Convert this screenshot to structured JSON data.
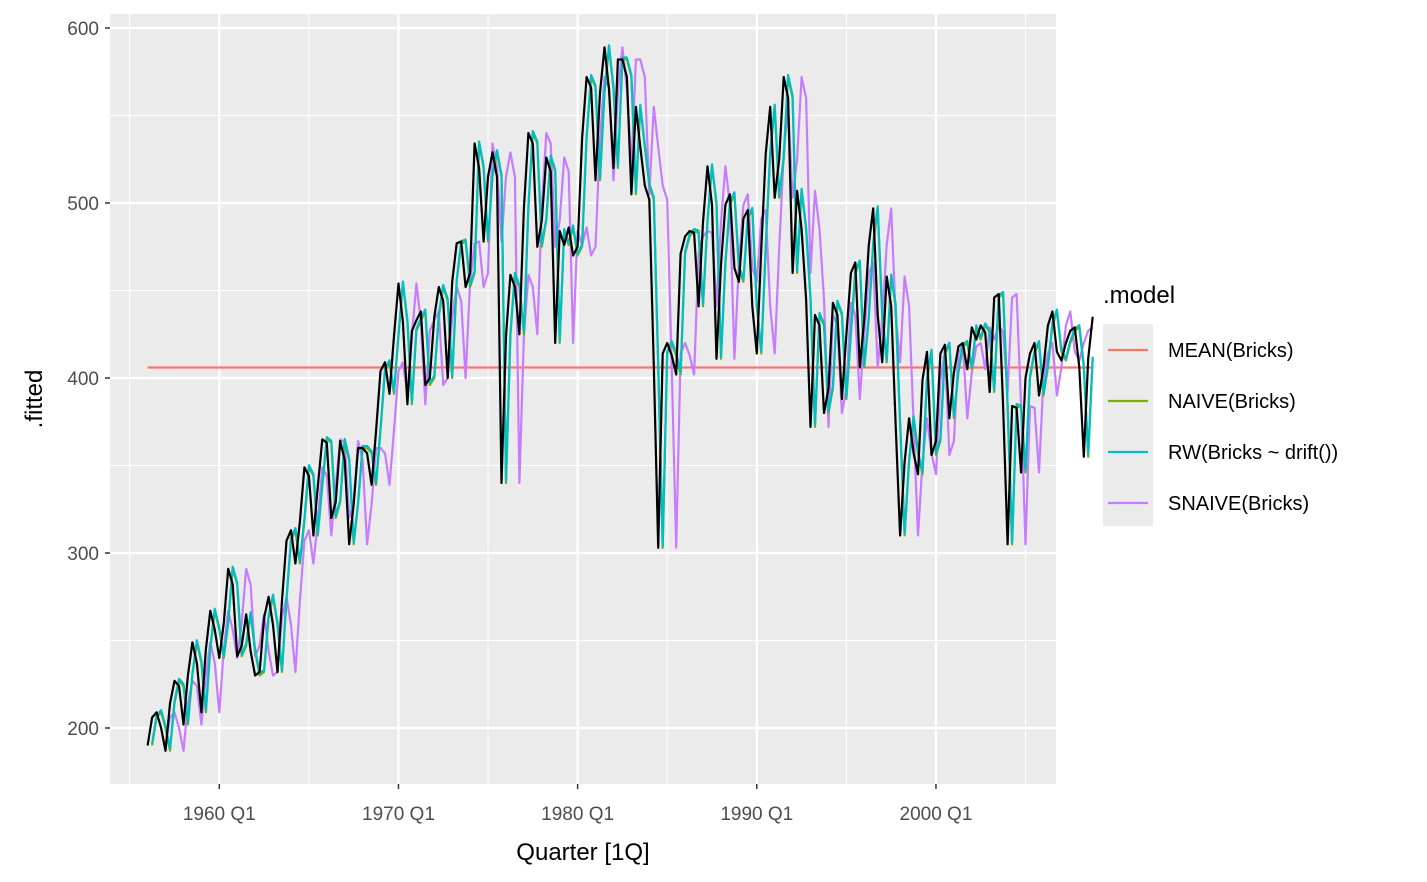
{
  "chart_data": {
    "type": "line",
    "xlabel": "Quarter [1Q]",
    "ylabel": ".fitted",
    "xlim": [
      1953.9,
      2006.7
    ],
    "ylim": [
      168,
      608
    ],
    "x_ticks": [
      {
        "value": 1960,
        "label": "1960 Q1"
      },
      {
        "value": 1970,
        "label": "1970 Q1"
      },
      {
        "value": 1980,
        "label": "1980 Q1"
      },
      {
        "value": 1990,
        "label": "1990 Q1"
      },
      {
        "value": 2000,
        "label": "2000 Q1"
      }
    ],
    "y_ticks": [
      200,
      300,
      400,
      500,
      600
    ],
    "grid": true,
    "legend": {
      "title": ".model",
      "position": "right",
      "entries": [
        {
          "label": "MEAN(Bricks)",
          "color": "#F8766D"
        },
        {
          "label": "NAIVE(Bricks)",
          "color": "#7CAE00"
        },
        {
          "label": "RW(Bricks ~ drift())",
          "color": "#00BFC4"
        },
        {
          "label": "SNAIVE(Bricks)",
          "color": "#C77CFF"
        }
      ]
    },
    "mean_value": 406,
    "observed": {
      "name": "Bricks",
      "color": "#000000",
      "start": 1956.0,
      "step": 0.25,
      "values": [
        190,
        206,
        209,
        200,
        187,
        214,
        227,
        224,
        202,
        230,
        249,
        237,
        209,
        245,
        267,
        256,
        240,
        260,
        291,
        282,
        241,
        247,
        265,
        244,
        230,
        232,
        263,
        275,
        259,
        232,
        273,
        307,
        313,
        294,
        318,
        349,
        344,
        310,
        338,
        365,
        363,
        320,
        329,
        364,
        353,
        305,
        328,
        360,
        360,
        357,
        339,
        370,
        404,
        409,
        391,
        424,
        454,
        432,
        385,
        427,
        433,
        438,
        396,
        400,
        435,
        452,
        444,
        400,
        455,
        477,
        478,
        452,
        460,
        534,
        520,
        478,
        515,
        529,
        515,
        340,
        424,
        459,
        452,
        425,
        497,
        540,
        534,
        475,
        490,
        526,
        518,
        420,
        484,
        476,
        486,
        470,
        475,
        537,
        572,
        566,
        513,
        563,
        589,
        565,
        520,
        582,
        582,
        572,
        505,
        555,
        532,
        510,
        502,
        407,
        303,
        414,
        420,
        413,
        402,
        471,
        481,
        484,
        483,
        441,
        489,
        521,
        499,
        411,
        465,
        499,
        505,
        463,
        455,
        491,
        496,
        441,
        414,
        474,
        528,
        555,
        503,
        525,
        572,
        560,
        460,
        507,
        485,
        445,
        372,
        436,
        430,
        380,
        394,
        443,
        436,
        388,
        425,
        460,
        466,
        406,
        434,
        476,
        497,
        436,
        409,
        458,
        441,
        374,
        310,
        352,
        377,
        357,
        345,
        399,
        415,
        356,
        364,
        414,
        419,
        377,
        403,
        418,
        420,
        405,
        429,
        422,
        430,
        426,
        392,
        446,
        448,
        384,
        305,
        384,
        383,
        346,
        400,
        414,
        420,
        390,
        406,
        430,
        438,
        415,
        410,
        420,
        427,
        429,
        406,
        355,
        411,
        435
      ]
    },
    "series": [
      {
        "name": "NAIVE(Bricks)",
        "color": "#7CAE00",
        "method": "lag1"
      },
      {
        "name": "RW(Bricks ~ drift())",
        "color": "#00BFC4",
        "method": "drift"
      },
      {
        "name": "SNAIVE(Bricks)",
        "color": "#C77CFF",
        "method": "lag4"
      }
    ]
  }
}
